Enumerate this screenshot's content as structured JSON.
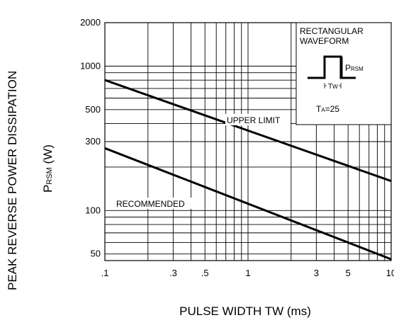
{
  "chart_data": {
    "type": "line",
    "x_scale": "log",
    "y_scale": "log",
    "xlim": [
      0.1,
      10
    ],
    "ylim": [
      45,
      2000
    ],
    "grid": true,
    "xlabel": "PULSE WIDTH TW (ms)",
    "ylabel_outer": "PEAK REVERSE POWER DISSIPATION",
    "ylabel_inner": {
      "main": "P",
      "sub": "RSM",
      "unit": " (W)"
    },
    "x_ticks": [
      {
        "value": 0.1,
        "label": ".1"
      },
      {
        "value": 0.3,
        "label": ".3"
      },
      {
        "value": 0.5,
        "label": ".5"
      },
      {
        "value": 1,
        "label": "1"
      },
      {
        "value": 3,
        "label": "3"
      },
      {
        "value": 5,
        "label": "5"
      },
      {
        "value": 10,
        "label": "10"
      }
    ],
    "y_ticks": [
      {
        "value": 50,
        "label": "50"
      },
      {
        "value": 100,
        "label": "100"
      },
      {
        "value": 300,
        "label": "300"
      },
      {
        "value": 500,
        "label": "500"
      },
      {
        "value": 1000,
        "label": "1000"
      },
      {
        "value": 2000,
        "label": "2000"
      }
    ],
    "series": [
      {
        "name": "UPPER LIMIT",
        "x": [
          0.1,
          10
        ],
        "y": [
          800,
          160
        ]
      },
      {
        "name": "RECOMMENDED",
        "x": [
          0.1,
          10
        ],
        "y": [
          270,
          46
        ]
      }
    ],
    "inset": {
      "title_line1": "RECTANGULAR",
      "title_line2": "WAVEFORM",
      "amp_main": "P",
      "amp_sub": "RSM",
      "tw_label": "T",
      "tw_sub": "W",
      "temp_main": "T",
      "temp_sub": "A",
      "temp_value": "=25"
    }
  }
}
